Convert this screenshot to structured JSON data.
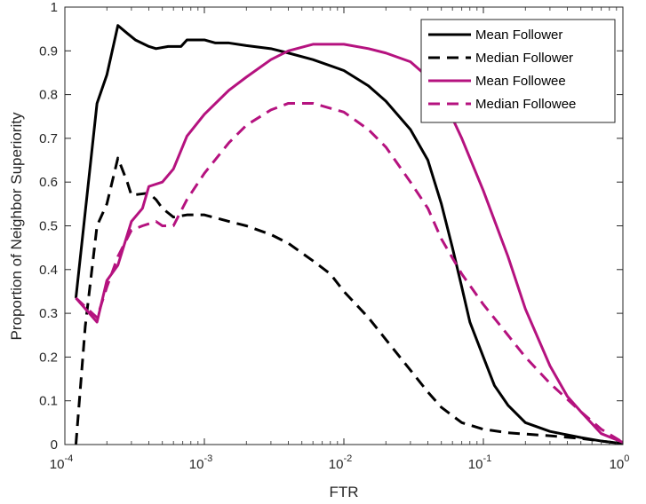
{
  "chart_data": {
    "type": "line",
    "title": "",
    "xlabel": "FTR",
    "ylabel": "Proportion of Neighbor Superiority",
    "xscale": "log",
    "xlim": [
      0.0001,
      1
    ],
    "ylim": [
      0,
      1
    ],
    "grid": false,
    "legend_position": "top-right",
    "x_ticks": [
      {
        "value": 0.0001,
        "base": "10",
        "exp": "-4"
      },
      {
        "value": 0.001,
        "base": "10",
        "exp": "-3"
      },
      {
        "value": 0.01,
        "base": "10",
        "exp": "-2"
      },
      {
        "value": 0.1,
        "base": "10",
        "exp": "-1"
      },
      {
        "value": 1,
        "base": "10",
        "exp": "0"
      }
    ],
    "y_ticks": [
      {
        "value": 0,
        "label": "0"
      },
      {
        "value": 0.1,
        "label": "0.1"
      },
      {
        "value": 0.2,
        "label": "0.2"
      },
      {
        "value": 0.3,
        "label": "0.3"
      },
      {
        "value": 0.4,
        "label": "0.4"
      },
      {
        "value": 0.5,
        "label": "0.5"
      },
      {
        "value": 0.6,
        "label": "0.6"
      },
      {
        "value": 0.7,
        "label": "0.7"
      },
      {
        "value": 0.8,
        "label": "0.8"
      },
      {
        "value": 0.9,
        "label": "0.9"
      },
      {
        "value": 1,
        "label": "1"
      }
    ],
    "series": [
      {
        "name": "Mean Follower",
        "color": "#000000",
        "dash": "solid",
        "points": [
          [
            0.00012,
            0.335
          ],
          [
            0.00017,
            0.78
          ],
          [
            0.0002,
            0.845
          ],
          [
            0.00024,
            0.958
          ],
          [
            0.00028,
            0.94
          ],
          [
            0.00032,
            0.925
          ],
          [
            0.0004,
            0.91
          ],
          [
            0.00045,
            0.905
          ],
          [
            0.00055,
            0.91
          ],
          [
            0.00068,
            0.91
          ],
          [
            0.00075,
            0.925
          ],
          [
            0.001,
            0.925
          ],
          [
            0.0012,
            0.918
          ],
          [
            0.0015,
            0.918
          ],
          [
            0.002,
            0.912
          ],
          [
            0.003,
            0.905
          ],
          [
            0.004,
            0.895
          ],
          [
            0.006,
            0.88
          ],
          [
            0.01,
            0.855
          ],
          [
            0.015,
            0.82
          ],
          [
            0.02,
            0.785
          ],
          [
            0.03,
            0.72
          ],
          [
            0.04,
            0.65
          ],
          [
            0.05,
            0.55
          ],
          [
            0.06,
            0.45
          ],
          [
            0.07,
            0.36
          ],
          [
            0.08,
            0.28
          ],
          [
            0.1,
            0.2
          ],
          [
            0.12,
            0.135
          ],
          [
            0.15,
            0.09
          ],
          [
            0.2,
            0.05
          ],
          [
            0.3,
            0.03
          ],
          [
            0.5,
            0.016
          ],
          [
            0.7,
            0.008
          ],
          [
            1,
            0.002
          ]
        ]
      },
      {
        "name": "Median Follower",
        "color": "#000000",
        "dash": "dashed",
        "points": [
          [
            0.00012,
            0
          ],
          [
            0.00014,
            0.27
          ],
          [
            0.00017,
            0.5
          ],
          [
            0.0002,
            0.55
          ],
          [
            0.00024,
            0.655
          ],
          [
            0.00028,
            0.6
          ],
          [
            0.0003,
            0.57
          ],
          [
            0.0004,
            0.575
          ],
          [
            0.00045,
            0.56
          ],
          [
            0.0005,
            0.54
          ],
          [
            0.0006,
            0.52
          ],
          [
            0.00075,
            0.525
          ],
          [
            0.001,
            0.525
          ],
          [
            0.0015,
            0.51
          ],
          [
            0.002,
            0.5
          ],
          [
            0.003,
            0.48
          ],
          [
            0.004,
            0.46
          ],
          [
            0.006,
            0.42
          ],
          [
            0.008,
            0.39
          ],
          [
            0.01,
            0.35
          ],
          [
            0.015,
            0.29
          ],
          [
            0.02,
            0.24
          ],
          [
            0.03,
            0.17
          ],
          [
            0.04,
            0.12
          ],
          [
            0.05,
            0.085
          ],
          [
            0.07,
            0.05
          ],
          [
            0.1,
            0.035
          ],
          [
            0.15,
            0.027
          ],
          [
            0.2,
            0.024
          ],
          [
            0.3,
            0.02
          ],
          [
            0.5,
            0.014
          ],
          [
            0.7,
            0.008
          ],
          [
            1,
            0.002
          ]
        ]
      },
      {
        "name": "Mean Followee",
        "color": "#b5127f",
        "dash": "solid",
        "points": [
          [
            0.00012,
            0.335
          ],
          [
            0.00017,
            0.28
          ],
          [
            0.0002,
            0.375
          ],
          [
            0.00024,
            0.41
          ],
          [
            0.0003,
            0.51
          ],
          [
            0.00036,
            0.54
          ],
          [
            0.0004,
            0.59
          ],
          [
            0.0005,
            0.6
          ],
          [
            0.0006,
            0.63
          ],
          [
            0.00075,
            0.705
          ],
          [
            0.001,
            0.755
          ],
          [
            0.0015,
            0.81
          ],
          [
            0.002,
            0.84
          ],
          [
            0.003,
            0.88
          ],
          [
            0.004,
            0.9
          ],
          [
            0.006,
            0.915
          ],
          [
            0.01,
            0.915
          ],
          [
            0.015,
            0.905
          ],
          [
            0.02,
            0.895
          ],
          [
            0.03,
            0.875
          ],
          [
            0.04,
            0.84
          ],
          [
            0.05,
            0.8
          ],
          [
            0.07,
            0.7
          ],
          [
            0.1,
            0.58
          ],
          [
            0.15,
            0.43
          ],
          [
            0.2,
            0.31
          ],
          [
            0.3,
            0.18
          ],
          [
            0.4,
            0.11
          ],
          [
            0.5,
            0.075
          ],
          [
            0.7,
            0.025
          ],
          [
            1,
            0.005
          ]
        ]
      },
      {
        "name": "Median Followee",
        "color": "#b5127f",
        "dash": "dashed",
        "points": [
          [
            0.00012,
            0.335
          ],
          [
            0.00017,
            0.29
          ],
          [
            0.0002,
            0.36
          ],
          [
            0.00024,
            0.43
          ],
          [
            0.0003,
            0.49
          ],
          [
            0.00036,
            0.5
          ],
          [
            0.00045,
            0.51
          ],
          [
            0.0005,
            0.5
          ],
          [
            0.0006,
            0.5
          ],
          [
            0.00075,
            0.56
          ],
          [
            0.001,
            0.62
          ],
          [
            0.0015,
            0.69
          ],
          [
            0.002,
            0.73
          ],
          [
            0.003,
            0.765
          ],
          [
            0.004,
            0.78
          ],
          [
            0.006,
            0.78
          ],
          [
            0.01,
            0.76
          ],
          [
            0.015,
            0.72
          ],
          [
            0.02,
            0.68
          ],
          [
            0.03,
            0.6
          ],
          [
            0.04,
            0.54
          ],
          [
            0.05,
            0.47
          ],
          [
            0.07,
            0.39
          ],
          [
            0.1,
            0.32
          ],
          [
            0.15,
            0.25
          ],
          [
            0.2,
            0.2
          ],
          [
            0.3,
            0.14
          ],
          [
            0.5,
            0.075
          ],
          [
            0.7,
            0.035
          ],
          [
            1,
            0.005
          ]
        ]
      }
    ]
  }
}
